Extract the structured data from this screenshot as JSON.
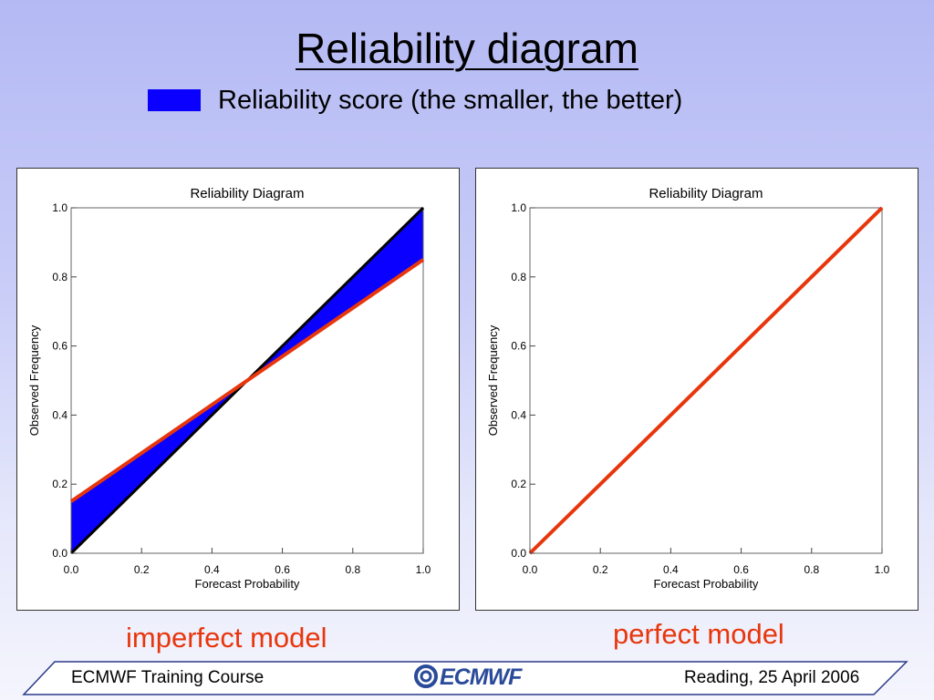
{
  "slide": {
    "title": "Reliability diagram",
    "legend_label": "Reliability score (the smaller, the better)",
    "legend_color": "#0a00ff",
    "caption_left": "imperfect model",
    "caption_right": "perfect model",
    "caption_color": "#e8360c"
  },
  "footer": {
    "course": "ECMWF Training Course",
    "logo": "ECMWF",
    "date": "Reading, 25 April 2006"
  },
  "chart_data": [
    {
      "type": "line",
      "title": "Reliability Diagram",
      "xlabel": "Forecast Probability",
      "ylabel": "Observed Frequency",
      "xlim": [
        0,
        1
      ],
      "ylim": [
        0,
        1
      ],
      "xticks": [
        "0.0",
        "0.2",
        "0.4",
        "0.6",
        "0.8",
        "1.0"
      ],
      "yticks": [
        "0.0",
        "0.2",
        "0.4",
        "0.6",
        "0.8",
        "1.0"
      ],
      "grid": false,
      "series": [
        {
          "role": "diagonal",
          "color": "#000000",
          "x": [
            0,
            1
          ],
          "y": [
            0,
            1
          ]
        },
        {
          "role": "model",
          "color": "#e8360c",
          "x": [
            0,
            1
          ],
          "y": [
            0.15,
            0.85
          ]
        }
      ],
      "shaded_area": {
        "color": "#0a00ff",
        "between": [
          "diagonal",
          "model"
        ]
      }
    },
    {
      "type": "line",
      "title": "Reliability Diagram",
      "xlabel": "Forecast Probability",
      "ylabel": "Observed Frequency",
      "xlim": [
        0,
        1
      ],
      "ylim": [
        0,
        1
      ],
      "xticks": [
        "0.0",
        "0.2",
        "0.4",
        "0.6",
        "0.8",
        "1.0"
      ],
      "yticks": [
        "0.0",
        "0.2",
        "0.4",
        "0.6",
        "0.8",
        "1.0"
      ],
      "grid": false,
      "series": [
        {
          "role": "model",
          "color": "#e8360c",
          "x": [
            0,
            1
          ],
          "y": [
            0,
            1
          ]
        }
      ]
    }
  ]
}
